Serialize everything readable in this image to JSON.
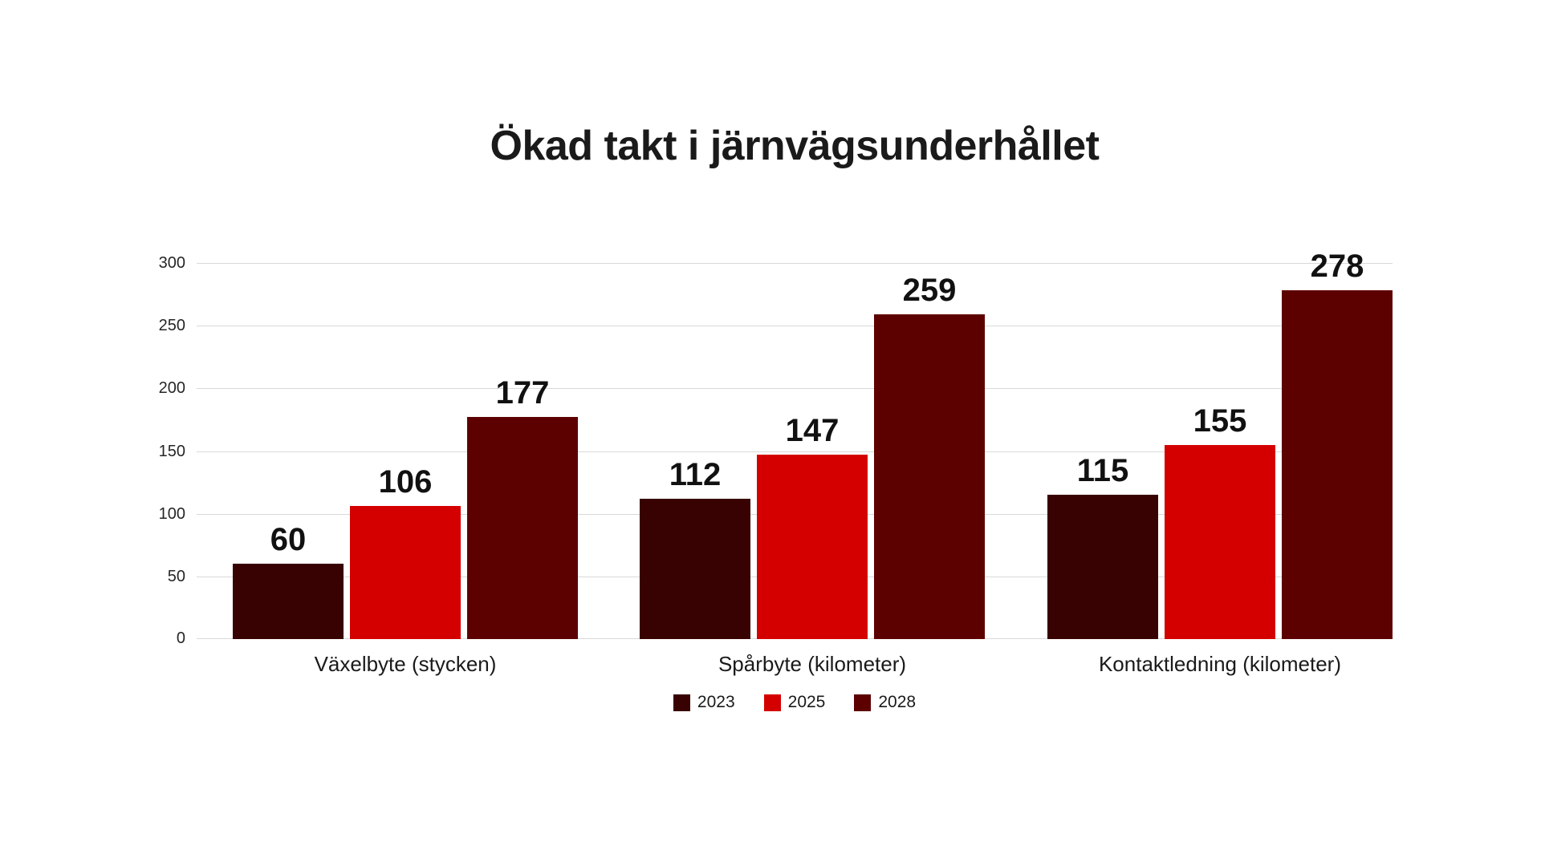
{
  "chart_data": {
    "type": "bar",
    "title": "Ökad takt i järnvägsunderhållet",
    "categories": [
      "Växelbyte (stycken)",
      "Spårbyte (kilometer)",
      "Kontaktledning (kilometer)"
    ],
    "series": [
      {
        "name": "2023",
        "color": "#380202",
        "values": [
          60,
          112,
          115
        ]
      },
      {
        "name": "2025",
        "color": "#d40000",
        "values": [
          106,
          147,
          155
        ]
      },
      {
        "name": "2028",
        "color": "#5d0000",
        "values": [
          177,
          259,
          278
        ]
      }
    ],
    "xlabel": "",
    "ylabel": "",
    "ylim": [
      0,
      300
    ],
    "yticks": [
      0,
      50,
      100,
      150,
      200,
      250,
      300
    ],
    "grid": true,
    "value_labels_shown": true,
    "legend_position": "bottom",
    "background_color": "#ffffff",
    "gridline_color": "#d9d9d9",
    "text_color": "#1a1a1a"
  }
}
